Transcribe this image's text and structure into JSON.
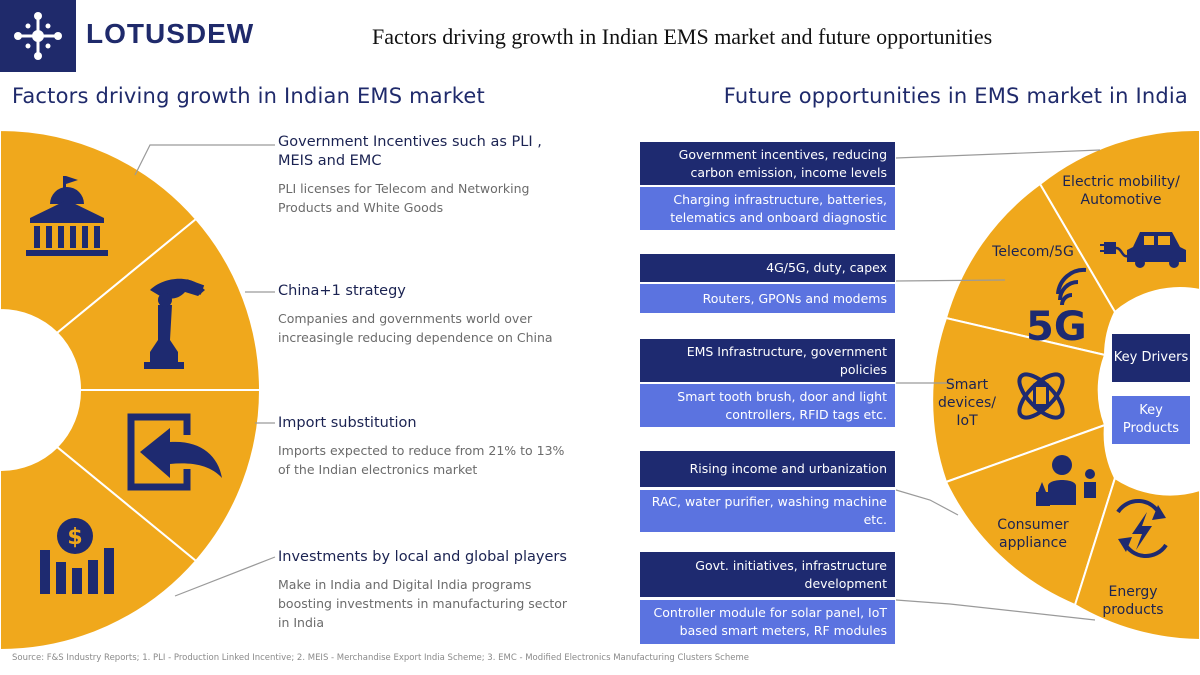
{
  "brand": {
    "name": "LOTUSDEW"
  },
  "title": "Factors driving growth in Indian EMS market and future opportunities",
  "left": {
    "title": "Factors driving growth in Indian EMS market",
    "factors": [
      {
        "heading": "Government Incentives such as PLI  , MEIS  and EMC",
        "desc": "PLI licenses for Telecom and Networking Products and White Goods",
        "icon": "government-building-icon"
      },
      {
        "heading": "China+1 strategy",
        "desc": "Companies and governments world over increasingle reducing dependence on China",
        "icon": "chess-hand-icon"
      },
      {
        "heading": "Import substitution",
        "desc": "Imports expected to reduce from 21% to 13% of the Indian electronics market",
        "icon": "import-arrow-icon"
      },
      {
        "heading": "Investments by local and global players",
        "desc": "Make in India and Digital India programs boosting investments in manufacturing sector in India",
        "icon": "investment-chart-icon"
      }
    ]
  },
  "right": {
    "title": "Future opportunities in EMS market in India",
    "opportunities": [
      {
        "driver": "Government incentives, reducing carbon emission, income levels",
        "products": "Charging infrastructure, batteries, telematics and onboard diagnostic"
      },
      {
        "driver": "4G/5G, duty, capex",
        "products": "Routers, GPONs and modems"
      },
      {
        "driver": "EMS Infrastructure, government policies",
        "products": "Smart tooth brush, door and light controllers, RFID tags etc."
      },
      {
        "driver": "Rising income and urbanization",
        "products": "RAC, water purifier, washing machine etc."
      },
      {
        "driver": "Govt. initiatives, infrastructure development",
        "products": "Controller module for solar panel, IoT based smart meters, RF modules"
      }
    ],
    "segments": [
      {
        "label": "Electric mobility/ Automotive",
        "icon": "electric-car-icon"
      },
      {
        "label": "Telecom/5G",
        "icon": "5g-icon"
      },
      {
        "label": "Smart devices/ IoT",
        "icon": "smart-device-icon"
      },
      {
        "label": "Consumer appliance",
        "icon": "consumer-icon"
      },
      {
        "label": "Energy products",
        "icon": "energy-icon"
      }
    ],
    "legend": {
      "drivers": "Key Drivers",
      "products": "Key Products"
    }
  },
  "source": "Source: F&S Industry Reports; 1. PLI - Production Linked Incentive; 2. MEIS - Merchandise Export India Scheme; 3. EMC - Modified Electronics Manufacturing Clusters Scheme",
  "colors": {
    "accent": "#f0a81c",
    "navy": "#1e2a70",
    "blue": "#5b73e0"
  }
}
